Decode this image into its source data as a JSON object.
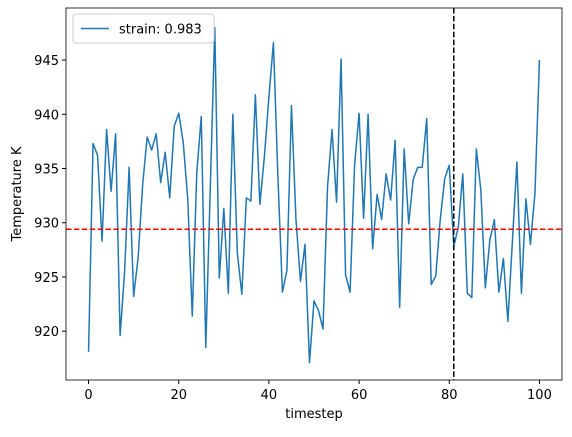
{
  "chart_data": {
    "type": "line",
    "xlabel": "timestep",
    "ylabel": "Temperature K",
    "x": [
      0,
      1,
      2,
      3,
      4,
      5,
      6,
      7,
      8,
      9,
      10,
      11,
      12,
      13,
      14,
      15,
      16,
      17,
      18,
      19,
      20,
      21,
      22,
      23,
      24,
      25,
      26,
      27,
      28,
      29,
      30,
      31,
      32,
      33,
      34,
      35,
      36,
      37,
      38,
      39,
      40,
      41,
      42,
      43,
      44,
      45,
      46,
      47,
      48,
      49,
      50,
      51,
      52,
      53,
      54,
      55,
      56,
      57,
      58,
      59,
      60,
      61,
      62,
      63,
      64,
      65,
      66,
      67,
      68,
      69,
      70,
      71,
      72,
      73,
      74,
      75,
      76,
      77,
      78,
      79,
      80,
      81,
      82,
      83,
      84,
      85,
      86,
      87,
      88,
      89,
      90,
      91,
      92,
      93,
      94,
      95,
      96,
      97,
      98,
      99,
      100
    ],
    "series": [
      {
        "name": "strain: 0.983",
        "color": "#1f77b4",
        "values": [
          918.1,
          937.3,
          936.2,
          928.3,
          938.6,
          932.9,
          938.2,
          919.6,
          925.5,
          935.1,
          923.2,
          926.8,
          933.5,
          937.9,
          936.7,
          938.2,
          933.7,
          936.5,
          932.3,
          938.9,
          940.1,
          937.4,
          932.2,
          921.4,
          934.6,
          939.8,
          918.5,
          933.2,
          948.0,
          924.9,
          931.3,
          923.5,
          940.0,
          927.2,
          923.4,
          932.3,
          932.0,
          941.8,
          931.7,
          936.1,
          941.6,
          946.6,
          934.2,
          923.6,
          925.6,
          940.8,
          930.3,
          924.6,
          928.0,
          917.1,
          922.8,
          921.9,
          920.2,
          933.3,
          938.6,
          931.9,
          945.1,
          925.2,
          923.6,
          935.3,
          940.1,
          930.4,
          940.0,
          927.6,
          932.6,
          930.3,
          934.5,
          932.1,
          937.6,
          922.2,
          936.8,
          929.9,
          934.0,
          935.1,
          935.1,
          939.6,
          924.3,
          925.1,
          930.3,
          934.1,
          935.3,
          927.8,
          929.6,
          934.5,
          923.5,
          923.1,
          936.8,
          933.0,
          924.0,
          928.4,
          930.3,
          923.6,
          926.7,
          920.9,
          928.3,
          935.6,
          923.5,
          932.2,
          928.0,
          932.7,
          945.0
        ]
      }
    ],
    "hline": {
      "value": 929.4,
      "color": "#ff0000"
    },
    "vline": {
      "value": 81,
      "color": "#000000"
    },
    "xlim": [
      -5,
      105
    ],
    "ylim": [
      915.5,
      949.8
    ],
    "xticks": [
      0,
      20,
      40,
      60,
      80,
      100
    ],
    "yticks": [
      920,
      925,
      930,
      935,
      940,
      945
    ],
    "legend": "upper left"
  }
}
